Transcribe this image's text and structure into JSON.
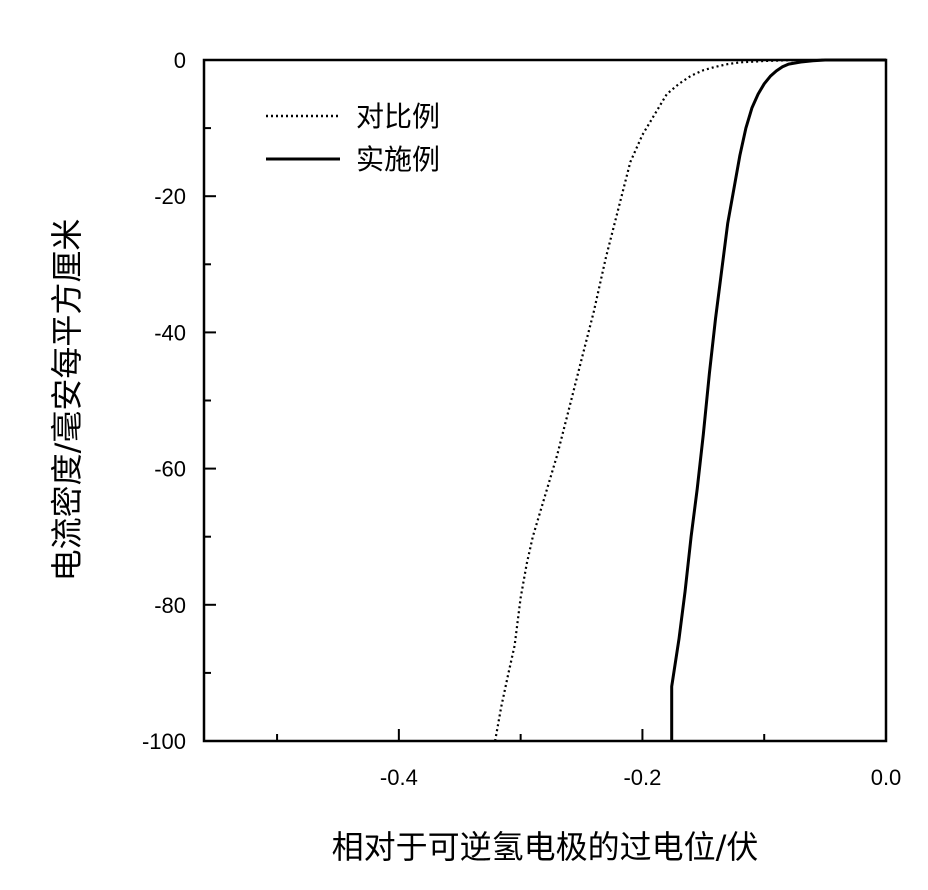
{
  "chart_data": {
    "type": "line",
    "xlabel": "相对于可逆氢电极的过电位/伏",
    "ylabel": "电流密度/毫安每平方厘米",
    "xlim": [
      -0.56,
      0.0
    ],
    "ylim": [
      -100,
      0
    ],
    "x_ticks": [
      {
        "value": -0.4,
        "label": "-0.4"
      },
      {
        "value": -0.2,
        "label": "-0.2"
      },
      {
        "value": 0.0,
        "label": "0.0"
      }
    ],
    "x_minor_ticks": [
      -0.5,
      -0.3,
      -0.1
    ],
    "y_ticks": [
      {
        "value": 0,
        "label": "0"
      },
      {
        "value": -20,
        "label": "-20"
      },
      {
        "value": -40,
        "label": "-40"
      },
      {
        "value": -60,
        "label": "-60"
      },
      {
        "value": -80,
        "label": "-80"
      },
      {
        "value": -100,
        "label": "-100"
      }
    ],
    "y_minor_ticks": [
      -10,
      -30,
      -50,
      -70,
      -90
    ],
    "legend_position": "top-left",
    "series": [
      {
        "name": "对比例",
        "style": "dotted",
        "color": "#000000",
        "points": [
          [
            -0.321,
            -100
          ],
          [
            -0.316,
            -95
          ],
          [
            -0.31,
            -90
          ],
          [
            -0.305,
            -86
          ],
          [
            -0.3,
            -79
          ],
          [
            -0.295,
            -74
          ],
          [
            -0.29,
            -70
          ],
          [
            -0.28,
            -64
          ],
          [
            -0.27,
            -58
          ],
          [
            -0.26,
            -51
          ],
          [
            -0.25,
            -44
          ],
          [
            -0.24,
            -37
          ],
          [
            -0.23,
            -29
          ],
          [
            -0.22,
            -22
          ],
          [
            -0.21,
            -15
          ],
          [
            -0.2,
            -11
          ],
          [
            -0.19,
            -8
          ],
          [
            -0.18,
            -5
          ],
          [
            -0.17,
            -3.5
          ],
          [
            -0.16,
            -2.3
          ],
          [
            -0.15,
            -1.5
          ],
          [
            -0.14,
            -1
          ],
          [
            -0.13,
            -0.6
          ],
          [
            -0.12,
            -0.35
          ],
          [
            -0.1,
            -0.15
          ],
          [
            -0.08,
            -0.05
          ],
          [
            -0.05,
            0
          ],
          [
            0.0,
            0
          ]
        ]
      },
      {
        "name": "实施例",
        "style": "solid",
        "color": "#000000",
        "points": [
          [
            -0.176,
            -100
          ],
          [
            -0.176,
            -92
          ],
          [
            -0.17,
            -85
          ],
          [
            -0.165,
            -78
          ],
          [
            -0.16,
            -70
          ],
          [
            -0.155,
            -63
          ],
          [
            -0.15,
            -55
          ],
          [
            -0.145,
            -46
          ],
          [
            -0.14,
            -38
          ],
          [
            -0.135,
            -31
          ],
          [
            -0.13,
            -24
          ],
          [
            -0.125,
            -19
          ],
          [
            -0.12,
            -14
          ],
          [
            -0.115,
            -10
          ],
          [
            -0.11,
            -7
          ],
          [
            -0.105,
            -5
          ],
          [
            -0.1,
            -3.5
          ],
          [
            -0.095,
            -2.4
          ],
          [
            -0.09,
            -1.6
          ],
          [
            -0.085,
            -1
          ],
          [
            -0.08,
            -0.6
          ],
          [
            -0.07,
            -0.3
          ],
          [
            -0.06,
            -0.1
          ],
          [
            -0.05,
            0
          ],
          [
            0.0,
            0
          ]
        ]
      }
    ]
  }
}
